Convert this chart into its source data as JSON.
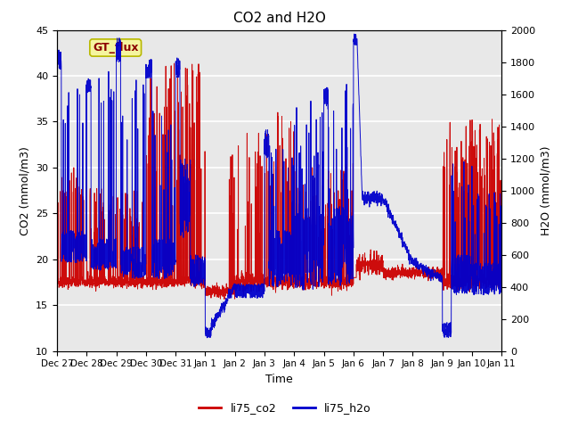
{
  "title": "CO2 and H2O",
  "xlabel": "Time",
  "ylabel_left": "CO2 (mmol/m3)",
  "ylabel_right": "H2O (mmol/m3)",
  "ylim_left": [
    10,
    45
  ],
  "ylim_right": [
    0,
    2000
  ],
  "yticks_left": [
    10,
    15,
    20,
    25,
    30,
    35,
    40,
    45
  ],
  "yticks_right": [
    0,
    200,
    400,
    600,
    800,
    1000,
    1200,
    1400,
    1600,
    1800,
    2000
  ],
  "legend_label_co2": "li75_co2",
  "legend_label_h2o": "li75_h2o",
  "annotation_text": "GT_flux",
  "co2_color": "#cc0000",
  "h2o_color": "#0000cc",
  "background_color": "#e8e8e8",
  "fig_background": "#ffffff",
  "title_fontsize": 11,
  "axis_fontsize": 9,
  "tick_fontsize": 8,
  "legend_fontsize": 9
}
